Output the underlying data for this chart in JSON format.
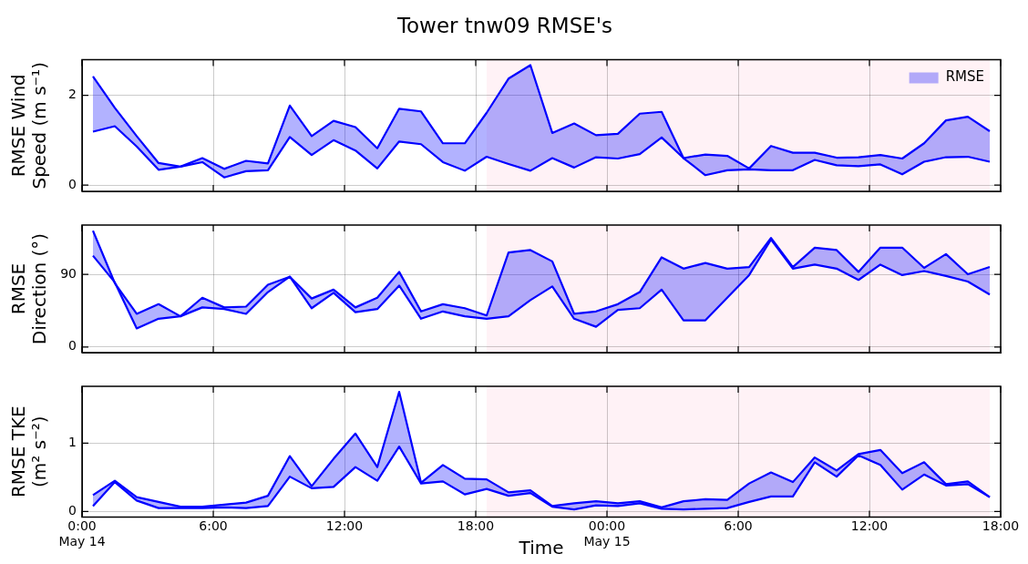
{
  "chart_data": [
    {
      "type": "line",
      "title": "Tower tnw09 RMSE's",
      "ylabel": "RMSE Wind Speed (m s⁻¹)",
      "legend": "top right",
      "grid": true,
      "tick_labels": "y",
      "x": [
        "--05-14T00:30",
        "--05-14T01:30",
        "--05-14T02:30",
        "--05-14T03:30",
        "--05-14T04:30",
        "--05-14T05:30",
        "--05-14T06:30",
        "--05-14T07:30",
        "--05-14T08:30",
        "--05-14T09:30",
        "--05-14T10:30",
        "--05-14T11:30",
        "--05-14T12:30",
        "--05-14T13:30",
        "--05-14T14:30",
        "--05-14T15:30",
        "--05-14T16:30",
        "--05-14T17:30",
        "--05-14T18:30",
        "--05-14T19:30",
        "--05-14T20:30",
        "--05-14T21:30",
        "--05-14T22:30",
        "--05-14T23:30",
        "--05-15T00:30",
        "--05-15T01:30",
        "--05-15T02:30",
        "--05-15T03:30",
        "--05-15T04:30",
        "--05-15T05:30",
        "--05-15T06:30",
        "--05-15T07:30",
        "--05-15T08:30",
        "--05-15T09:30",
        "--05-15T10:30",
        "--05-15T11:30",
        "--05-15T12:30",
        "--05-15T13:30",
        "--05-15T14:30",
        "--05-15T15:30",
        "--05-15T16:30",
        "--05-15T17:30"
      ],
      "xlim": [
        "--05-14T00:00",
        "--05-15T18:00"
      ],
      "xticks": [
        {
          "value": "--05-14T00:00",
          "label": null
        },
        {
          "value": "--05-14T06:00",
          "label": null
        },
        {
          "value": "--05-14T12:00",
          "label": null
        },
        {
          "value": "--05-14T18:00",
          "label": null
        },
        {
          "value": "--05-15T00:00",
          "label": null
        },
        {
          "value": "--05-15T06:00",
          "label": null
        },
        {
          "value": "--05-15T12:00",
          "label": null
        },
        {
          "value": "--05-15T18:00",
          "label": null
        }
      ],
      "ylim": [
        -0.14,
        2.79
      ],
      "yticks": [
        0,
        2
      ],
      "bands": [
        {
          "axis": "x",
          "from": "--05-14T18:30",
          "to": "--05-15T17:30",
          "color": "#fff2f6"
        }
      ],
      "series": [
        {
          "color": "#0000ff",
          "values": [
            2.42,
            1.72,
            1.09,
            0.49,
            0.41,
            0.6,
            0.36,
            0.54,
            0.48,
            1.77,
            1.09,
            1.43,
            1.29,
            0.82,
            1.7,
            1.64,
            0.93,
            0.93,
            1.61,
            2.37,
            2.67,
            1.16,
            1.37,
            1.11,
            1.14,
            1.59,
            1.63,
            0.6,
            0.68,
            0.65,
            0.37,
            0.87,
            0.72,
            0.72,
            0.61,
            0.62,
            0.67,
            0.59,
            0.93,
            1.44,
            1.52,
            1.2
          ]
        },
        {
          "name": "RMSE",
          "color": "#0000ff",
          "values": [
            1.19,
            1.31,
            0.86,
            0.34,
            0.41,
            0.51,
            0.17,
            0.31,
            0.33,
            1.07,
            0.67,
            1.0,
            0.77,
            0.37,
            0.97,
            0.91,
            0.51,
            0.32,
            0.63,
            0.47,
            0.32,
            0.6,
            0.39,
            0.62,
            0.59,
            0.69,
            1.06,
            0.6,
            0.22,
            0.33,
            0.35,
            0.33,
            0.33,
            0.56,
            0.44,
            0.42,
            0.46,
            0.24,
            0.52,
            0.62,
            0.63,
            0.52
          ],
          "lower": [
            1.19,
            1.31,
            0.86,
            0.34,
            0.41,
            0.51,
            0.17,
            0.31,
            0.33,
            1.07,
            0.67,
            1.0,
            0.77,
            0.37,
            0.97,
            0.91,
            0.51,
            0.32,
            0.63,
            0.47,
            0.32,
            0.6,
            0.39,
            0.62,
            0.59,
            0.69,
            1.06,
            0.6,
            0.22,
            0.33,
            0.35,
            0.33,
            0.33,
            0.56,
            0.44,
            0.42,
            0.46,
            0.24,
            0.52,
            0.62,
            0.63,
            0.52
          ],
          "upper": [
            2.42,
            1.72,
            1.09,
            0.49,
            0.41,
            0.6,
            0.36,
            0.54,
            0.48,
            1.77,
            1.09,
            1.43,
            1.29,
            0.82,
            1.7,
            1.64,
            0.93,
            0.93,
            1.61,
            2.37,
            2.67,
            1.16,
            1.37,
            1.11,
            1.14,
            1.59,
            1.63,
            0.6,
            0.68,
            0.65,
            0.37,
            0.87,
            0.72,
            0.72,
            0.61,
            0.62,
            0.67,
            0.59,
            0.93,
            1.44,
            1.52,
            1.2
          ]
        }
      ]
    },
    {
      "type": "line",
      "ylabel": "RMSE Direction (°)",
      "grid": true,
      "tick_labels": "y",
      "x": [
        "--05-14T00:30",
        "--05-14T01:30",
        "--05-14T02:30",
        "--05-14T03:30",
        "--05-14T04:30",
        "--05-14T05:30",
        "--05-14T06:30",
        "--05-14T07:30",
        "--05-14T08:30",
        "--05-14T09:30",
        "--05-14T10:30",
        "--05-14T11:30",
        "--05-14T12:30",
        "--05-14T13:30",
        "--05-14T14:30",
        "--05-14T15:30",
        "--05-14T16:30",
        "--05-14T17:30",
        "--05-14T18:30",
        "--05-14T19:30",
        "--05-14T20:30",
        "--05-14T21:30",
        "--05-14T22:30",
        "--05-14T23:30",
        "--05-15T00:30",
        "--05-15T01:30",
        "--05-15T02:30",
        "--05-15T03:30",
        "--05-15T04:30",
        "--05-15T05:30",
        "--05-15T06:30",
        "--05-15T07:30",
        "--05-15T08:30",
        "--05-15T09:30",
        "--05-15T10:30",
        "--05-15T11:30",
        "--05-15T12:30",
        "--05-15T13:30",
        "--05-15T14:30",
        "--05-15T15:30",
        "--05-15T16:30",
        "--05-15T17:30"
      ],
      "xlim": [
        "--05-14T00:00",
        "--05-15T18:00"
      ],
      "xticks": [
        {
          "value": "--05-14T00:00",
          "label": null
        },
        {
          "value": "--05-14T06:00",
          "label": null
        },
        {
          "value": "--05-14T12:00",
          "label": null
        },
        {
          "value": "--05-14T18:00",
          "label": null
        },
        {
          "value": "--05-15T00:00",
          "label": null
        },
        {
          "value": "--05-15T06:00",
          "label": null
        },
        {
          "value": "--05-15T12:00",
          "label": null
        },
        {
          "value": "--05-15T18:00",
          "label": null
        }
      ],
      "ylim": [
        -7,
        151
      ],
      "yticks": [
        0,
        90
      ],
      "bands": [
        {
          "axis": "x",
          "from": "--05-14T18:30",
          "to": "--05-15T17:30",
          "color": "#fff2f6"
        }
      ],
      "series": [
        {
          "color": "#0000ff",
          "values": [
            144,
            79,
            41,
            53,
            38,
            61,
            49,
            50,
            77,
            87,
            60,
            71,
            49,
            61,
            93,
            44,
            53,
            48,
            39,
            117,
            120,
            106,
            41,
            44,
            53,
            68,
            111,
            97,
            104,
            97,
            99,
            135,
            99,
            123,
            120,
            93,
            123,
            123,
            98,
            115,
            90,
            99
          ]
        },
        {
          "color": "#0000ff",
          "values": [
            113,
            80,
            23,
            35,
            38,
            49,
            47,
            41,
            68,
            87,
            48,
            67,
            43,
            47,
            76,
            35,
            44,
            38,
            35,
            38,
            58,
            75,
            35,
            25,
            46,
            48,
            71,
            33,
            33,
            61,
            89,
            133,
            97,
            102,
            97,
            83,
            102,
            89,
            94,
            88,
            81,
            65
          ],
          "lower": [
            113,
            80,
            23,
            35,
            38,
            49,
            47,
            41,
            68,
            87,
            48,
            67,
            43,
            47,
            76,
            35,
            44,
            38,
            35,
            38,
            58,
            75,
            35,
            25,
            46,
            48,
            71,
            33,
            33,
            61,
            89,
            133,
            97,
            102,
            97,
            83,
            102,
            89,
            94,
            88,
            81,
            65
          ],
          "upper": [
            144,
            79,
            41,
            53,
            38,
            61,
            49,
            50,
            77,
            87,
            60,
            71,
            49,
            61,
            93,
            44,
            53,
            48,
            39,
            117,
            120,
            106,
            41,
            44,
            53,
            68,
            111,
            97,
            104,
            97,
            99,
            135,
            99,
            123,
            120,
            93,
            123,
            123,
            98,
            115,
            90,
            99
          ]
        }
      ]
    },
    {
      "type": "line",
      "ylabel": "RMSE TKE (m² s⁻²)",
      "xlabel": "Time",
      "grid": true,
      "x": [
        "--05-14T00:30",
        "--05-14T01:30",
        "--05-14T02:30",
        "--05-14T03:30",
        "--05-14T04:30",
        "--05-14T05:30",
        "--05-14T06:30",
        "--05-14T07:30",
        "--05-14T08:30",
        "--05-14T09:30",
        "--05-14T10:30",
        "--05-14T11:30",
        "--05-14T12:30",
        "--05-14T13:30",
        "--05-14T14:30",
        "--05-14T15:30",
        "--05-14T16:30",
        "--05-14T17:30",
        "--05-14T18:30",
        "--05-14T19:30",
        "--05-14T20:30",
        "--05-14T21:30",
        "--05-14T22:30",
        "--05-14T23:30",
        "--05-15T00:30",
        "--05-15T01:30",
        "--05-15T02:30",
        "--05-15T03:30",
        "--05-15T04:30",
        "--05-15T05:30",
        "--05-15T06:30",
        "--05-15T07:30",
        "--05-15T08:30",
        "--05-15T09:30",
        "--05-15T10:30",
        "--05-15T11:30",
        "--05-15T12:30",
        "--05-15T13:30",
        "--05-15T14:30",
        "--05-15T15:30",
        "--05-15T16:30",
        "--05-15T17:30"
      ],
      "xlim": [
        "--05-14T00:00",
        "--05-15T18:00"
      ],
      "xticks": [
        {
          "value": "--05-14T00:00",
          "label": "0:00\nMay 14"
        },
        {
          "value": "--05-14T06:00",
          "label": "6:00"
        },
        {
          "value": "--05-14T12:00",
          "label": "12:00"
        },
        {
          "value": "--05-14T18:00",
          "label": "18:00"
        },
        {
          "value": "--05-15T00:00",
          "label": "00:00\nMay 15"
        },
        {
          "value": "--05-15T06:00",
          "label": "6:00"
        },
        {
          "value": "--05-15T12:00",
          "label": "12:00"
        },
        {
          "value": "--05-15T18:00",
          "label": "18:00"
        }
      ],
      "ylim": [
        -0.08,
        1.83
      ],
      "yticks": [
        0,
        1
      ],
      "bands": [
        {
          "axis": "x",
          "from": "--05-14T18:30",
          "to": "--05-15T17:30",
          "color": "#fff2f6"
        }
      ],
      "series": [
        {
          "color": "#0000ff",
          "values": [
            0.24,
            0.45,
            0.21,
            0.14,
            0.07,
            0.07,
            0.1,
            0.13,
            0.23,
            0.81,
            0.37,
            0.77,
            1.14,
            0.65,
            1.75,
            0.42,
            0.68,
            0.48,
            0.47,
            0.28,
            0.31,
            0.08,
            0.12,
            0.15,
            0.12,
            0.15,
            0.06,
            0.15,
            0.18,
            0.17,
            0.41,
            0.57,
            0.43,
            0.79,
            0.6,
            0.84,
            0.9,
            0.56,
            0.72,
            0.4,
            0.44,
            0.21
          ]
        },
        {
          "color": "#0000ff",
          "values": [
            0.08,
            0.43,
            0.16,
            0.05,
            0.05,
            0.05,
            0.06,
            0.05,
            0.08,
            0.51,
            0.34,
            0.36,
            0.65,
            0.45,
            0.95,
            0.41,
            0.44,
            0.25,
            0.33,
            0.23,
            0.27,
            0.07,
            0.03,
            0.09,
            0.08,
            0.12,
            0.04,
            0.03,
            0.04,
            0.05,
            0.14,
            0.22,
            0.22,
            0.72,
            0.51,
            0.82,
            0.68,
            0.32,
            0.54,
            0.38,
            0.4,
            0.21
          ],
          "lower": [
            0.08,
            0.43,
            0.16,
            0.05,
            0.05,
            0.05,
            0.06,
            0.05,
            0.08,
            0.51,
            0.34,
            0.36,
            0.65,
            0.45,
            0.95,
            0.41,
            0.44,
            0.25,
            0.33,
            0.23,
            0.27,
            0.07,
            0.03,
            0.09,
            0.08,
            0.12,
            0.04,
            0.03,
            0.04,
            0.05,
            0.14,
            0.22,
            0.22,
            0.72,
            0.51,
            0.82,
            0.68,
            0.32,
            0.54,
            0.38,
            0.4,
            0.21
          ],
          "upper": [
            0.24,
            0.45,
            0.21,
            0.14,
            0.07,
            0.07,
            0.1,
            0.13,
            0.23,
            0.81,
            0.37,
            0.77,
            1.14,
            0.65,
            1.75,
            0.42,
            0.68,
            0.48,
            0.47,
            0.28,
            0.31,
            0.08,
            0.12,
            0.15,
            0.12,
            0.15,
            0.06,
            0.15,
            0.18,
            0.17,
            0.41,
            0.57,
            0.43,
            0.79,
            0.6,
            0.84,
            0.9,
            0.56,
            0.72,
            0.4,
            0.44,
            0.21
          ]
        }
      ]
    }
  ]
}
